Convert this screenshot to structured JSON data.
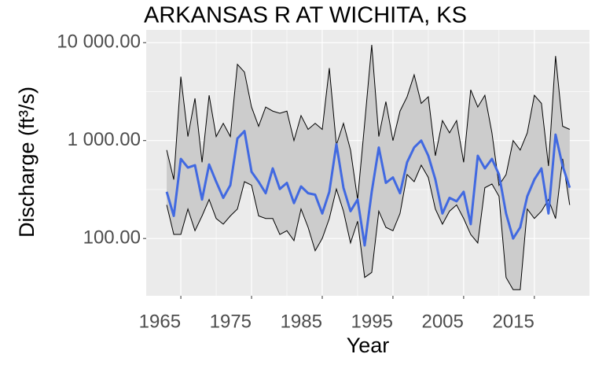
{
  "chart_data": {
    "type": "ribbon_line",
    "title": "ARKANSAS R AT WICHITA, KS",
    "x_label": "Year",
    "y_label": "Discharge (ft³/s)",
    "x": [
      1963,
      1964,
      1965,
      1966,
      1967,
      1968,
      1969,
      1970,
      1971,
      1972,
      1973,
      1974,
      1975,
      1976,
      1977,
      1978,
      1979,
      1980,
      1981,
      1982,
      1983,
      1984,
      1985,
      1986,
      1987,
      1988,
      1989,
      1990,
      1991,
      1992,
      1993,
      1994,
      1995,
      1996,
      1997,
      1998,
      1999,
      2000,
      2001,
      2002,
      2003,
      2004,
      2005,
      2006,
      2007,
      2008,
      2009,
      2010,
      2011,
      2012,
      2013,
      2014,
      2015,
      2016,
      2017,
      2018,
      2019,
      2020
    ],
    "ribbon": {
      "fill": "#cccccc",
      "outline": "#000000",
      "low": [
        220,
        110,
        110,
        200,
        120,
        170,
        250,
        160,
        140,
        170,
        200,
        380,
        350,
        170,
        160,
        160,
        110,
        120,
        95,
        200,
        130,
        75,
        100,
        160,
        320,
        190,
        90,
        150,
        40,
        45,
        190,
        130,
        120,
        180,
        450,
        380,
        560,
        420,
        200,
        140,
        190,
        220,
        160,
        110,
        90,
        330,
        360,
        270,
        40,
        30,
        30,
        200,
        160,
        190,
        250,
        160,
        650,
        220
      ],
      "high": [
        800,
        400,
        4500,
        1100,
        2700,
        600,
        2900,
        1100,
        1500,
        1100,
        6000,
        5000,
        2200,
        1400,
        2200,
        2000,
        1900,
        2000,
        1000,
        1800,
        1300,
        1500,
        1300,
        5500,
        900,
        1500,
        800,
        250,
        1500,
        9500,
        1100,
        2500,
        1000,
        2000,
        2800,
        4700,
        2400,
        2800,
        700,
        1600,
        1200,
        1600,
        600,
        3300,
        2200,
        2900,
        1200,
        350,
        450,
        1000,
        800,
        1200,
        2900,
        2400,
        550,
        7300,
        1400,
        1300
      ]
    },
    "series": [
      {
        "color": "#4169e1",
        "values": [
          300,
          170,
          650,
          530,
          560,
          250,
          570,
          380,
          260,
          350,
          1050,
          1250,
          480,
          380,
          290,
          520,
          320,
          370,
          230,
          340,
          290,
          280,
          180,
          300,
          920,
          330,
          190,
          250,
          85,
          300,
          850,
          370,
          420,
          290,
          600,
          850,
          1000,
          700,
          400,
          180,
          260,
          240,
          300,
          140,
          700,
          520,
          650,
          450,
          180,
          100,
          130,
          270,
          400,
          520,
          180,
          1150,
          550,
          330
        ]
      }
    ],
    "log_y": true,
    "ylim": [
      26,
      13500
    ],
    "yticks": [
      {
        "value": 100,
        "label": "100.00"
      },
      {
        "value": 1000,
        "label": "1 000.00"
      },
      {
        "value": 10000,
        "label": "10 000.00"
      }
    ],
    "xlim": [
      1960.1,
      2022.8
    ],
    "xticks": [
      1965,
      1975,
      1985,
      1995,
      2005,
      2015
    ],
    "grid": true,
    "panel_color": "#ebebeb"
  }
}
